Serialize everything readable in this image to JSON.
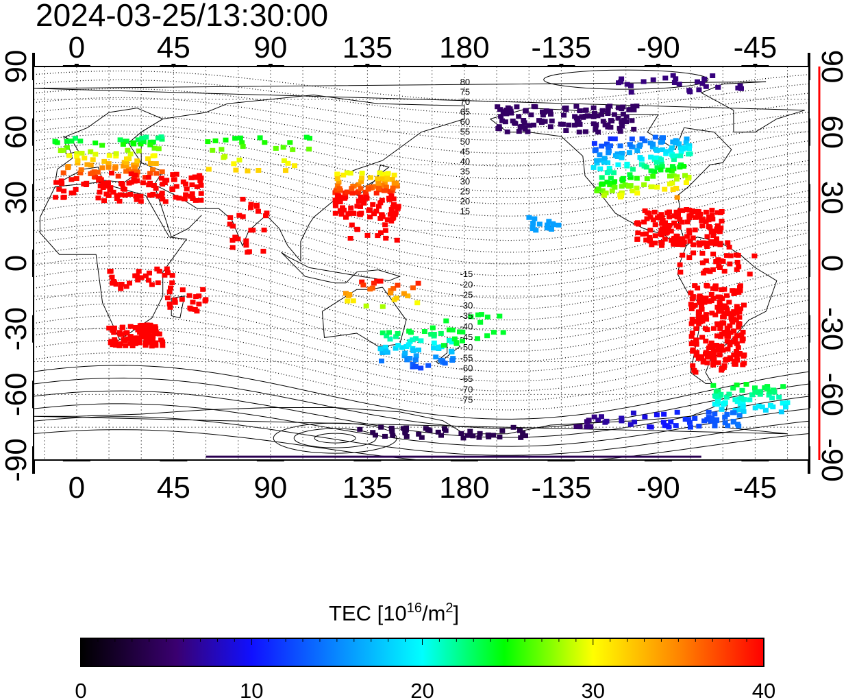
{
  "title": "2024-03-25/13:30:00",
  "map": {
    "type": "tec-map",
    "top_lon_labels": [
      "0",
      "45",
      "90",
      "135",
      "180",
      "-135",
      "-90",
      "-45"
    ],
    "bottom_lon_labels": [
      "0",
      "45",
      "90",
      "135",
      "180",
      "-135",
      "-90",
      "-45"
    ],
    "left_lat_labels": [
      "90",
      "60",
      "30",
      "0",
      "-30",
      "-60",
      "-90"
    ],
    "right_lat_labels": [
      "90",
      "60",
      "30",
      "0",
      "-30",
      "-60",
      "-90"
    ],
    "lat_range": [
      -90,
      90
    ],
    "lon_range": [
      -20,
      340
    ],
    "grid": true,
    "contour_labels_north": [
      "80",
      "75",
      "70",
      "65",
      "60",
      "55",
      "50",
      "45",
      "40",
      "35",
      "30",
      "25",
      "20",
      "15"
    ],
    "contour_labels_south": [
      "-15",
      "-20",
      "-25",
      "-30",
      "-35",
      "-40",
      "-45",
      "-50",
      "-55",
      "-60",
      "-65",
      "-70",
      "-75"
    ]
  },
  "colorbar": {
    "label_prefix": "TEC  [10",
    "label_exp1": "16",
    "label_mid": "/m",
    "label_exp2": "2",
    "label_suffix": "]",
    "ticks": [
      "0",
      "10",
      "20",
      "30",
      "40"
    ],
    "range": [
      0,
      40
    ],
    "colors": [
      "#000000",
      "#4b0082",
      "#0000ff",
      "#00ffff",
      "#00ff00",
      "#ffff00",
      "#ff8c00",
      "#ff0000"
    ]
  }
}
